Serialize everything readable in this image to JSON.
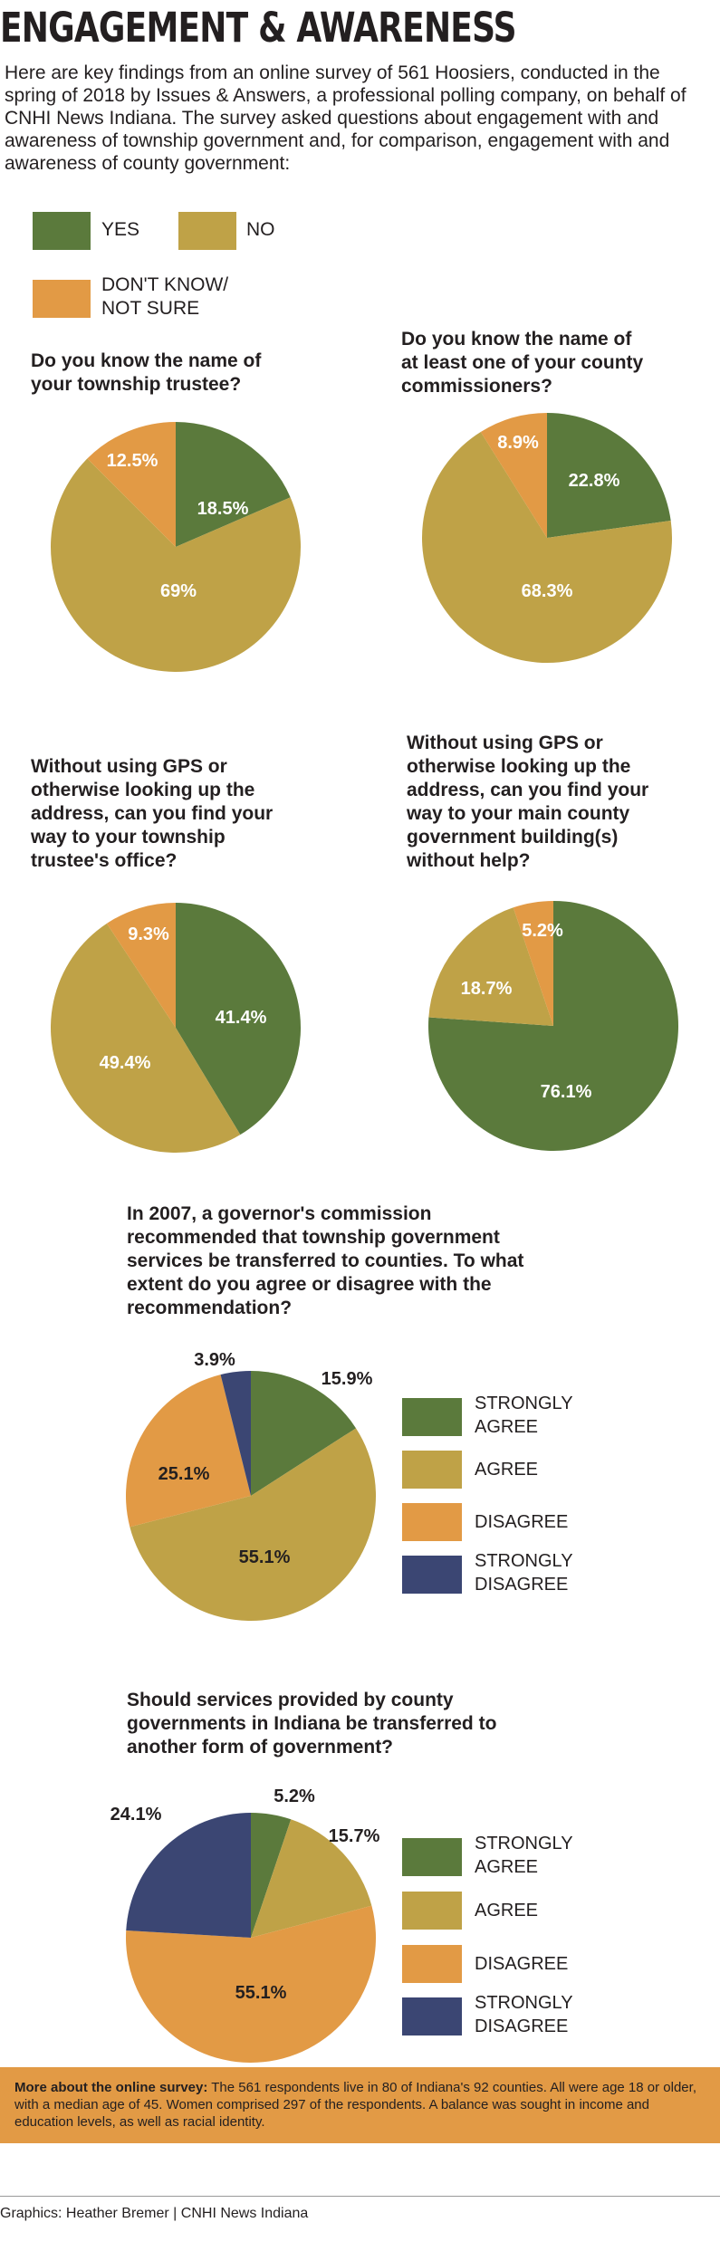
{
  "title": "ENGAGEMENT & AWARENESS",
  "intro": "Here are key findings from an online survey of 561 Hoosiers, conducted in the spring of 2018 by Issues & Answers, a professional polling company, on behalf of CNHI News Indiana. The survey asked questions about engagement with and awareness of township government and, for comparison, engagement with and awareness of county government:",
  "colors": {
    "yes": "#5b7a3c",
    "no": "#bfa247",
    "dont_know": "#e29a45",
    "strongly_agree": "#5b7a3c",
    "agree": "#bfa247",
    "disagree": "#e29a45",
    "strongly_disagree": "#3b4673"
  },
  "legend_top": {
    "yes": "YES",
    "no": "NO",
    "dont_know_line1": "DON'T KNOW/",
    "dont_know_line2": "NOT SURE"
  },
  "legend_agree": {
    "strongly_agree_line1": "STRONGLY",
    "strongly_agree_line2": "AGREE",
    "agree": "AGREE",
    "disagree": "DISAGREE",
    "strongly_disagree_line1": "STRONGLY",
    "strongly_disagree_line2": "DISAGREE"
  },
  "chart_data": [
    {
      "type": "pie",
      "title": "Do you know the name of your township trustee?",
      "title_lines": [
        "Do you know the name of",
        "your township trustee?"
      ],
      "categories": [
        "YES",
        "NO",
        "DON'T KNOW/NOT SURE"
      ],
      "values": [
        18.5,
        69,
        12.5
      ],
      "labels": [
        "18.5%",
        "69%",
        "12.5%"
      ]
    },
    {
      "type": "pie",
      "title": "Do you know the name of at least one of your county commissioners?",
      "title_lines": [
        "Do you know the name of",
        "at least one of your county",
        "commissioners?"
      ],
      "categories": [
        "YES",
        "NO",
        "DON'T KNOW/NOT SURE"
      ],
      "values": [
        22.8,
        68.3,
        8.9
      ],
      "labels": [
        "22.8%",
        "68.3%",
        "8.9%"
      ]
    },
    {
      "type": "pie",
      "title": "Without using GPS or otherwise looking up the address, can you find your way to your township trustee's office?",
      "title_lines": [
        "Without using GPS or",
        "otherwise looking up the",
        "address, can you find your",
        "way to your township",
        "trustee's office?"
      ],
      "categories": [
        "YES",
        "NO",
        "DON'T KNOW/NOT SURE"
      ],
      "values": [
        41.4,
        49.4,
        9.3
      ],
      "labels": [
        "41.4%",
        "49.4%",
        "9.3%"
      ]
    },
    {
      "type": "pie",
      "title": "Without using GPS or otherwise looking up the address, can you find your way to your main county government building(s) without help?",
      "title_lines": [
        "Without using GPS or",
        "otherwise looking up the",
        "address, can you find your",
        "way to your main county",
        "government building(s)",
        "without help?"
      ],
      "categories": [
        "YES",
        "NO",
        "DON'T KNOW/NOT SURE"
      ],
      "values": [
        76.1,
        18.7,
        5.2
      ],
      "labels": [
        "76.1%",
        "18.7%",
        "5.2%"
      ]
    },
    {
      "type": "pie",
      "title": "In 2007, a governor's commission recommended that township government services be transferred to counties. To what extent do you agree or disagree with the recommendation?",
      "title_lines": [
        "In 2007, a governor's commission",
        "recommended that township government",
        "services be transferred to counties. To what",
        "extent do you agree or disagree with the",
        "recommendation?"
      ],
      "categories": [
        "STRONGLY AGREE",
        "AGREE",
        "DISAGREE",
        "STRONGLY DISAGREE"
      ],
      "values": [
        15.9,
        55.1,
        25.1,
        3.9
      ],
      "labels": [
        "15.9%",
        "55.1%",
        "25.1%",
        "3.9%"
      ]
    },
    {
      "type": "pie",
      "title": "Should services provided by county governments in Indiana be transferred to another form of government?",
      "title_lines": [
        "Should services provided by county",
        "governments in Indiana be transferred to",
        "another form of government?"
      ],
      "categories": [
        "STRONGLY AGREE",
        "AGREE",
        "DISAGREE",
        "STRONGLY DISAGREE"
      ],
      "values": [
        5.2,
        15.7,
        55.1,
        24.1
      ],
      "labels": [
        "5.2%",
        "15.7%",
        "55.1%",
        "24.1%"
      ]
    }
  ],
  "footnote": {
    "lead": "More about the online survey:",
    "text": " The 561 respondents live in 80 of Indiana's 92 counties. All were age 18 or older, with a median age of 45. Women comprised 297 of the respondents. A balance was sought in income and education levels, as well as racial identity."
  },
  "credit": "Graphics: Heather Bremer | CNHI News Indiana"
}
